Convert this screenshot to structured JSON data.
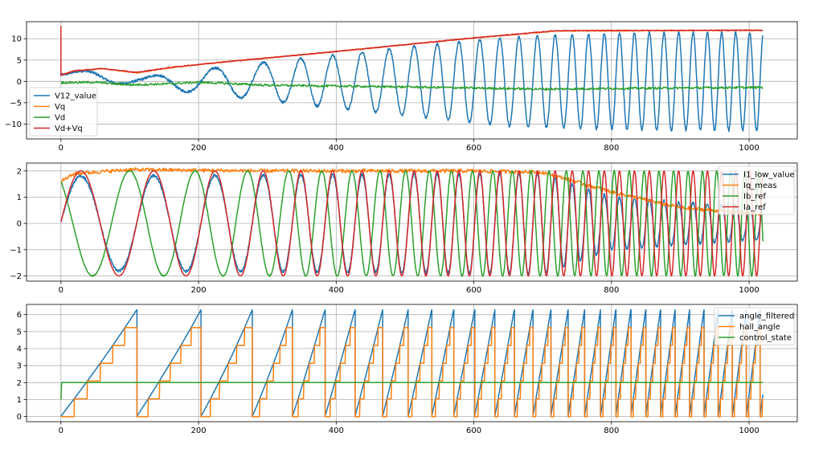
{
  "figure": {
    "background": "#ffffff"
  },
  "colors": {
    "c0": "#1f77b4",
    "c1": "#ff7f0e",
    "c2": "#2ca02c",
    "c3": "#d62728"
  },
  "chart_data": [
    {
      "type": "line",
      "title": "",
      "xlabel": "",
      "ylabel": "",
      "xlim": [
        -50,
        1070
      ],
      "ylim": [
        -13.5,
        14
      ],
      "xticks": [
        0,
        200,
        400,
        600,
        800,
        1000
      ],
      "xtick_labels": [
        "0",
        "200",
        "400",
        "600",
        "800",
        "1000"
      ],
      "yticks": [
        -10,
        -5,
        0,
        5,
        10
      ],
      "ytick_labels": [
        "−10",
        "−5",
        "0",
        "5",
        "10"
      ],
      "grid": true,
      "legend": "lower-left",
      "series": [
        {
          "name": "V12_value",
          "color": "#1f77b4",
          "kind": "oscillation",
          "x_start": 0,
          "x_end": 1020,
          "center": [
            [
              0,
              1.5
            ],
            [
              60,
              1.2
            ],
            [
              120,
              0
            ],
            [
              200,
              0
            ],
            [
              1020,
              0
            ]
          ],
          "amplitude": [
            [
              0,
              0.5
            ],
            [
              50,
              1.5
            ],
            [
              120,
              1.0
            ],
            [
              170,
              2.2
            ],
            [
              300,
              4.5
            ],
            [
              500,
              8.0
            ],
            [
              650,
              10.5
            ],
            [
              850,
              11.5
            ],
            [
              1020,
              11.5
            ]
          ],
          "period": [
            [
              0,
              120
            ],
            [
              180,
              90
            ],
            [
              350,
              48
            ],
            [
              550,
              32
            ],
            [
              800,
              22
            ],
            [
              1020,
              20
            ]
          ],
          "noise": 0.3
        },
        {
          "name": "Vq",
          "color": "#ff7f0e",
          "kind": "curve",
          "x_start": 0,
          "x_end": 1020,
          "points": [
            [
              0,
              1.5
            ],
            [
              20,
              2.5
            ],
            [
              60,
              3.0
            ],
            [
              110,
              2.0
            ],
            [
              160,
              3.2
            ],
            [
              220,
              4.3
            ],
            [
              400,
              7.0
            ],
            [
              600,
              10.2
            ],
            [
              720,
              11.8
            ],
            [
              1020,
              12.0
            ]
          ],
          "noise": 0.1
        },
        {
          "name": "Vd",
          "color": "#2ca02c",
          "kind": "curve",
          "x_start": 0,
          "x_end": 1020,
          "points": [
            [
              0,
              -0.3
            ],
            [
              50,
              -0.2
            ],
            [
              100,
              -0.8
            ],
            [
              150,
              -0.6
            ],
            [
              200,
              -0.2
            ],
            [
              300,
              -0.9
            ],
            [
              500,
              -1.3
            ],
            [
              700,
              -1.8
            ],
            [
              850,
              -1.6
            ],
            [
              1020,
              -1.4
            ]
          ],
          "noise": 0.25
        },
        {
          "name": "Vd+Vq",
          "color": "#d62728",
          "kind": "curve",
          "x_start": 0,
          "x_end": 1020,
          "points": [
            [
              0,
              1.5
            ],
            [
              20,
              2.5
            ],
            [
              60,
              3.0
            ],
            [
              110,
              2.1
            ],
            [
              160,
              3.3
            ],
            [
              220,
              4.3
            ],
            [
              400,
              7.0
            ],
            [
              600,
              10.2
            ],
            [
              720,
              11.9
            ],
            [
              1020,
              12.0
            ]
          ],
          "noise": 0.1,
          "spike": {
            "x": 0,
            "y": 13
          }
        }
      ]
    },
    {
      "type": "line",
      "title": "",
      "xlabel": "",
      "ylabel": "",
      "xlim": [
        -50,
        1070
      ],
      "ylim": [
        -2.2,
        2.3
      ],
      "xticks": [
        0,
        200,
        400,
        600,
        800,
        1000
      ],
      "xtick_labels": [
        "0",
        "200",
        "400",
        "600",
        "800",
        "1000"
      ],
      "yticks": [
        -2,
        -1,
        0,
        1,
        2
      ],
      "ytick_labels": [
        "−2",
        "−1",
        "0",
        "1",
        "2"
      ],
      "grid": true,
      "legend": "top-right",
      "series": [
        {
          "name": "I1_low_value",
          "color": "#1f77b4",
          "kind": "oscillation",
          "x_start": 0,
          "x_end": 1020,
          "center": [
            [
              0,
              0
            ],
            [
              1020,
              0
            ]
          ],
          "amplitude": [
            [
              0,
              1.8
            ],
            [
              700,
              1.9
            ],
            [
              800,
              1.0
            ],
            [
              1020,
              0.6
            ]
          ],
          "period": [
            [
              0,
              120
            ],
            [
              180,
              90
            ],
            [
              350,
              48
            ],
            [
              550,
              32
            ],
            [
              800,
              22
            ],
            [
              1020,
              20
            ]
          ],
          "noise": 0.05
        },
        {
          "name": "Iq_meas",
          "color": "#ff7f0e",
          "kind": "curve",
          "x_start": 0,
          "x_end": 1020,
          "points": [
            [
              0,
              1.6
            ],
            [
              20,
              1.9
            ],
            [
              100,
              2.05
            ],
            [
              300,
              2.0
            ],
            [
              600,
              2.0
            ],
            [
              700,
              1.95
            ],
            [
              800,
              1.2
            ],
            [
              900,
              0.6
            ],
            [
              1020,
              0.35
            ]
          ],
          "noise": 0.07
        },
        {
          "name": "Ib_ref",
          "color": "#2ca02c",
          "kind": "oscillation",
          "x_start": 0,
          "x_end": 1020,
          "center": [
            [
              0,
              0
            ],
            [
              1020,
              0
            ]
          ],
          "amplitude": [
            [
              0,
              2.0
            ],
            [
              1020,
              2.0
            ]
          ],
          "period": [
            [
              0,
              120
            ],
            [
              180,
              90
            ],
            [
              350,
              48
            ],
            [
              550,
              32
            ],
            [
              800,
              22
            ],
            [
              1020,
              20
            ]
          ],
          "phase_shift": 0.35,
          "noise": 0.02
        },
        {
          "name": "Ia_ref",
          "color": "#d62728",
          "kind": "oscillation",
          "x_start": 0,
          "x_end": 1020,
          "center": [
            [
              0,
              0
            ],
            [
              1020,
              0
            ]
          ],
          "amplitude": [
            [
              0,
              2.0
            ],
            [
              1020,
              2.0
            ]
          ],
          "period": [
            [
              0,
              120
            ],
            [
              180,
              90
            ],
            [
              350,
              48
            ],
            [
              550,
              32
            ],
            [
              800,
              22
            ],
            [
              1020,
              20
            ]
          ],
          "noise": 0.0
        }
      ]
    },
    {
      "type": "line",
      "title": "",
      "xlabel": "",
      "ylabel": "",
      "xlim": [
        -50,
        1070
      ],
      "ylim": [
        -0.3,
        6.6
      ],
      "xticks": [
        0,
        200,
        400,
        600,
        800,
        1000
      ],
      "xtick_labels": [
        "0",
        "200",
        "400",
        "600",
        "800",
        "1000"
      ],
      "yticks": [
        0,
        1,
        2,
        3,
        4,
        5,
        6
      ],
      "ytick_labels": [
        "0",
        "1",
        "2",
        "3",
        "4",
        "5",
        "6"
      ],
      "grid": true,
      "legend": "top-right",
      "series": [
        {
          "name": "angle_filtered",
          "color": "#1f77b4",
          "kind": "sawtooth",
          "x_start": 0,
          "x_end": 1020,
          "max": 6.28,
          "period": [
            [
              0,
              120
            ],
            [
              180,
              90
            ],
            [
              350,
              48
            ],
            [
              550,
              32
            ],
            [
              800,
              22
            ],
            [
              1020,
              20
            ]
          ]
        },
        {
          "name": "hall_angle",
          "color": "#ff7f0e",
          "kind": "staircase",
          "x_start": 0,
          "x_end": 1020,
          "max": 6.28,
          "steps": 6,
          "period": [
            [
              0,
              120
            ],
            [
              180,
              90
            ],
            [
              350,
              48
            ],
            [
              550,
              32
            ],
            [
              800,
              22
            ],
            [
              1020,
              20
            ]
          ]
        },
        {
          "name": "control_state",
          "color": "#2ca02c",
          "kind": "curve",
          "x_start": 0,
          "x_end": 1020,
          "points": [
            [
              0,
              1.0
            ],
            [
              1,
              2.0
            ],
            [
              1020,
              2.0
            ]
          ],
          "noise": 0.0
        }
      ]
    }
  ]
}
